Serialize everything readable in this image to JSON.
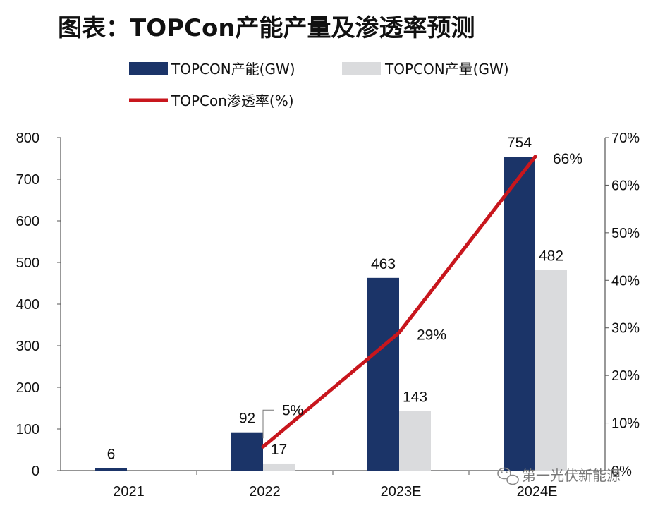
{
  "chart_data": {
    "type": "bar",
    "title": "图表：TOPCon产能产量及渗透率预测",
    "categories": [
      "2021",
      "2022",
      "2023E",
      "2024E"
    ],
    "series": [
      {
        "name": "TOPCON产能(GW)",
        "kind": "bar",
        "values": [
          6,
          92,
          463,
          754
        ],
        "color": "#1b3468"
      },
      {
        "name": "TOPCON产量(GW)",
        "kind": "bar",
        "values": [
          null,
          17,
          143,
          482
        ],
        "color": "#dadbdd"
      },
      {
        "name": "TOPCon渗透率(%)",
        "kind": "line",
        "axis": "right",
        "values": [
          null,
          5,
          29,
          66
        ],
        "labels": [
          "",
          "5%",
          "29%",
          "66%"
        ],
        "color": "#c8161d"
      }
    ],
    "ylim": [
      0,
      800
    ],
    "yticks": [
      "0",
      "100",
      "200",
      "300",
      "400",
      "500",
      "600",
      "700",
      "800"
    ],
    "y2lim": [
      0,
      70
    ],
    "y2ticks": [
      "0%",
      "10%",
      "20%",
      "30%",
      "40%",
      "50%",
      "60%",
      "70%"
    ],
    "xlabel": "",
    "ylabel": "",
    "y2label": "",
    "legend_position": "top-left",
    "grid": false
  },
  "watermark": {
    "icon": "wechat-icon",
    "text": "第一光伏新能源"
  }
}
